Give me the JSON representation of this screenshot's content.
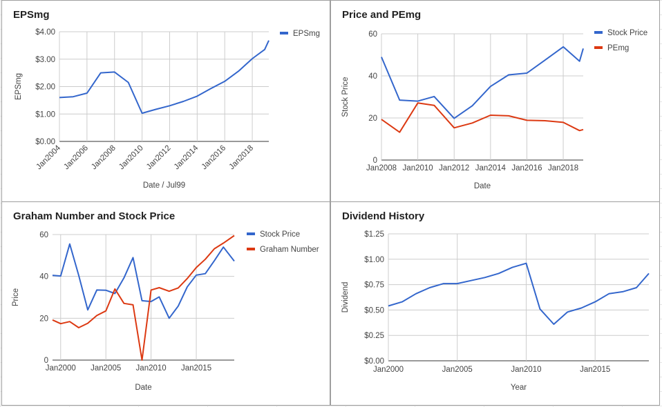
{
  "charts": [
    {
      "title": "EPSmg",
      "chart_data": {
        "type": "line",
        "xlabel": "Date / Jul99",
        "ylabel": "EPSmg",
        "x_tick_labels": [
          "Jan2004",
          "Jan2006",
          "Jan2008",
          "Jan2010",
          "Jan2012",
          "Jan2014",
          "Jan2016",
          "Jan2018"
        ],
        "y_tick_labels": [
          "$0.00",
          "$1.00",
          "$2.00",
          "$3.00",
          "$4.00"
        ],
        "xlim": [
          2004.0,
          2019.2
        ],
        "ylim": [
          0,
          4
        ],
        "grid": true,
        "legend_position": "right",
        "series": [
          {
            "name": "EPSmg",
            "color": "#3366cc",
            "points": [
              {
                "x": 2004.0,
                "y": 1.6
              },
              {
                "x": 2005.0,
                "y": 1.63
              },
              {
                "x": 2006.0,
                "y": 1.76
              },
              {
                "x": 2007.0,
                "y": 2.5
              },
              {
                "x": 2008.0,
                "y": 2.53
              },
              {
                "x": 2009.0,
                "y": 2.15
              },
              {
                "x": 2010.0,
                "y": 1.03
              },
              {
                "x": 2011.0,
                "y": 1.17
              },
              {
                "x": 2012.0,
                "y": 1.3
              },
              {
                "x": 2013.0,
                "y": 1.46
              },
              {
                "x": 2014.0,
                "y": 1.65
              },
              {
                "x": 2015.0,
                "y": 1.93
              },
              {
                "x": 2016.0,
                "y": 2.19
              },
              {
                "x": 2017.0,
                "y": 2.56
              },
              {
                "x": 2018.0,
                "y": 3.02
              },
              {
                "x": 2018.9,
                "y": 3.35
              },
              {
                "x": 2019.2,
                "y": 3.68
              }
            ]
          }
        ]
      }
    },
    {
      "title": "Price and PEmg",
      "chart_data": {
        "type": "line",
        "xlabel": "Date",
        "ylabel": "Stock Price",
        "x_tick_labels": [
          "Jan2008",
          "Jan2010",
          "Jan2012",
          "Jan2014",
          "Jan2016",
          "Jan2018"
        ],
        "y_tick_labels": [
          "0",
          "20",
          "40",
          "60"
        ],
        "xlim": [
          2008.0,
          2019.1
        ],
        "ylim": [
          0,
          60
        ],
        "grid": true,
        "legend_position": "right",
        "series": [
          {
            "name": "Stock Price",
            "color": "#3366cc",
            "points": [
              {
                "x": 2008.0,
                "y": 49
              },
              {
                "x": 2009.0,
                "y": 28.5
              },
              {
                "x": 2010.0,
                "y": 28
              },
              {
                "x": 2010.9,
                "y": 30.2
              },
              {
                "x": 2012.0,
                "y": 19.8
              },
              {
                "x": 2013.0,
                "y": 25.8
              },
              {
                "x": 2014.0,
                "y": 35
              },
              {
                "x": 2015.0,
                "y": 40.5
              },
              {
                "x": 2016.0,
                "y": 41.3
              },
              {
                "x": 2017.0,
                "y": 47.5
              },
              {
                "x": 2018.0,
                "y": 53.8
              },
              {
                "x": 2018.9,
                "y": 47
              },
              {
                "x": 2019.1,
                "y": 53
              }
            ]
          },
          {
            "name": "PEmg",
            "color": "#dc3912",
            "points": [
              {
                "x": 2008.0,
                "y": 19.3
              },
              {
                "x": 2009.0,
                "y": 13.2
              },
              {
                "x": 2010.0,
                "y": 27.1
              },
              {
                "x": 2010.9,
                "y": 26
              },
              {
                "x": 2012.0,
                "y": 15.3
              },
              {
                "x": 2013.0,
                "y": 17.6
              },
              {
                "x": 2014.0,
                "y": 21.3
              },
              {
                "x": 2015.0,
                "y": 21
              },
              {
                "x": 2016.0,
                "y": 18.9
              },
              {
                "x": 2017.0,
                "y": 18.7
              },
              {
                "x": 2018.0,
                "y": 17.9
              },
              {
                "x": 2018.9,
                "y": 14
              },
              {
                "x": 2019.1,
                "y": 14.5
              }
            ]
          }
        ]
      }
    },
    {
      "title": "Graham Number and Stock Price",
      "chart_data": {
        "type": "line",
        "xlabel": "Date",
        "ylabel": "Price",
        "x_tick_labels": [
          "Jan2000",
          "Jan2005",
          "Jan2010",
          "Jan2015"
        ],
        "y_tick_labels": [
          "0",
          "20",
          "40",
          "60"
        ],
        "xlim": [
          1999.1,
          2019.2
        ],
        "ylim": [
          0,
          60
        ],
        "grid": true,
        "legend_position": "right",
        "series": [
          {
            "name": "Stock Price",
            "color": "#3366cc",
            "points": [
              {
                "x": 1999.1,
                "y": 40.5
              },
              {
                "x": 2000.0,
                "y": 40.2
              },
              {
                "x": 2001.0,
                "y": 55.5
              },
              {
                "x": 2002.0,
                "y": 40.5
              },
              {
                "x": 2003.0,
                "y": 24
              },
              {
                "x": 2004.0,
                "y": 33.5
              },
              {
                "x": 2005.0,
                "y": 33.4
              },
              {
                "x": 2006.0,
                "y": 31.8
              },
              {
                "x": 2007.0,
                "y": 39.3
              },
              {
                "x": 2008.0,
                "y": 49
              },
              {
                "x": 2009.0,
                "y": 28.4
              },
              {
                "x": 2010.0,
                "y": 28
              },
              {
                "x": 2010.9,
                "y": 30.2
              },
              {
                "x": 2012.0,
                "y": 20
              },
              {
                "x": 2013.0,
                "y": 25.8
              },
              {
                "x": 2014.0,
                "y": 35
              },
              {
                "x": 2015.0,
                "y": 40.6
              },
              {
                "x": 2016.0,
                "y": 41.3
              },
              {
                "x": 2017.0,
                "y": 47.5
              },
              {
                "x": 2018.0,
                "y": 54
              },
              {
                "x": 2019.2,
                "y": 47.3
              }
            ]
          },
          {
            "name": "Graham Number",
            "color": "#dc3912",
            "points": [
              {
                "x": 1999.1,
                "y": 19.2
              },
              {
                "x": 2000.0,
                "y": 17.4
              },
              {
                "x": 2001.0,
                "y": 18.4
              },
              {
                "x": 2002.0,
                "y": 15.5
              },
              {
                "x": 2003.0,
                "y": 17.6
              },
              {
                "x": 2004.0,
                "y": 21.3
              },
              {
                "x": 2005.0,
                "y": 23.5
              },
              {
                "x": 2006.0,
                "y": 34
              },
              {
                "x": 2007.0,
                "y": 27.1
              },
              {
                "x": 2008.0,
                "y": 26.4
              },
              {
                "x": 2009.0,
                "y": 0
              },
              {
                "x": 2010.0,
                "y": 33.5
              },
              {
                "x": 2010.9,
                "y": 34.6
              },
              {
                "x": 2012.0,
                "y": 32.9
              },
              {
                "x": 2013.0,
                "y": 34.5
              },
              {
                "x": 2014.0,
                "y": 39
              },
              {
                "x": 2015.0,
                "y": 44.2
              },
              {
                "x": 2016.0,
                "y": 48.2
              },
              {
                "x": 2017.0,
                "y": 53.2
              },
              {
                "x": 2018.0,
                "y": 55.9
              },
              {
                "x": 2019.2,
                "y": 59.5
              }
            ]
          }
        ]
      }
    },
    {
      "title": "Dividend History",
      "chart_data": {
        "type": "line",
        "xlabel": "Year",
        "ylabel": "Dividend",
        "x_tick_labels": [
          "Jan2000",
          "Jan2005",
          "Jan2010",
          "Jan2015"
        ],
        "y_tick_labels": [
          "$0.00",
          "$0.25",
          "$0.50",
          "$0.75",
          "$1.00",
          "$1.25"
        ],
        "xlim": [
          2000.0,
          2018.9
        ],
        "ylim": [
          0,
          1.25
        ],
        "grid": true,
        "legend_position": "none",
        "series": [
          {
            "name": "",
            "color": "#3366cc",
            "points": [
              {
                "x": 2000.0,
                "y": 0.54
              },
              {
                "x": 2001.0,
                "y": 0.58
              },
              {
                "x": 2002.0,
                "y": 0.66
              },
              {
                "x": 2003.0,
                "y": 0.72
              },
              {
                "x": 2004.0,
                "y": 0.76
              },
              {
                "x": 2005.0,
                "y": 0.76
              },
              {
                "x": 2006.0,
                "y": 0.79
              },
              {
                "x": 2007.0,
                "y": 0.82
              },
              {
                "x": 2008.0,
                "y": 0.86
              },
              {
                "x": 2009.0,
                "y": 0.92
              },
              {
                "x": 2010.0,
                "y": 0.96
              },
              {
                "x": 2011.0,
                "y": 0.51
              },
              {
                "x": 2012.0,
                "y": 0.36
              },
              {
                "x": 2013.0,
                "y": 0.48
              },
              {
                "x": 2014.0,
                "y": 0.52
              },
              {
                "x": 2015.0,
                "y": 0.58
              },
              {
                "x": 2016.0,
                "y": 0.66
              },
              {
                "x": 2017.0,
                "y": 0.68
              },
              {
                "x": 2018.0,
                "y": 0.72
              },
              {
                "x": 2018.9,
                "y": 0.86
              }
            ]
          }
        ]
      }
    }
  ]
}
